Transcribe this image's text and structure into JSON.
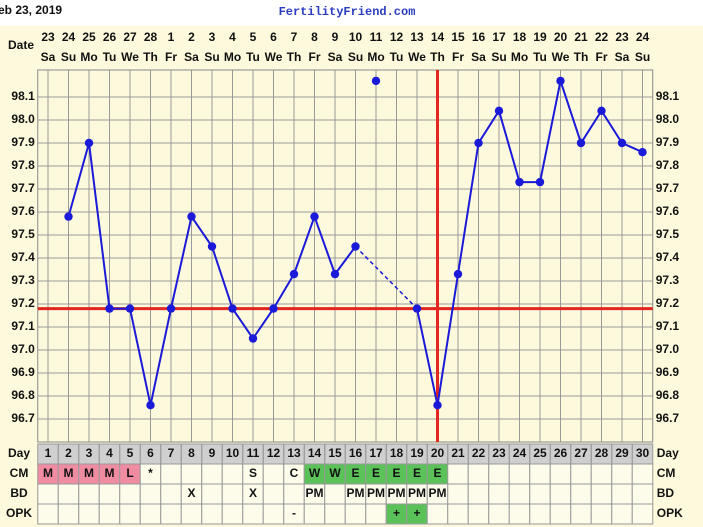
{
  "header": {
    "date": "eb 23, 2019",
    "site": "FertilityFriend.com"
  },
  "chart_data": {
    "type": "line",
    "x_label": "Date",
    "dates": [
      23,
      24,
      25,
      26,
      27,
      28,
      1,
      2,
      3,
      4,
      5,
      6,
      7,
      8,
      9,
      10,
      11,
      12,
      13,
      14,
      15,
      16,
      17,
      18,
      19,
      20,
      21,
      22,
      23,
      24
    ],
    "weekdays": [
      "Sa",
      "Su",
      "Mo",
      "Tu",
      "We",
      "Th",
      "Fr",
      "Sa",
      "Su",
      "Mo",
      "Tu",
      "We",
      "Th",
      "Fr",
      "Sa",
      "Su",
      "Mo",
      "Tu",
      "We",
      "Th",
      "Fr",
      "Sa",
      "Su",
      "Mo",
      "Tu",
      "We",
      "Th",
      "Fr",
      "Sa",
      "Su"
    ],
    "day_label": "Day",
    "categories": [
      1,
      2,
      3,
      4,
      5,
      6,
      7,
      8,
      9,
      10,
      11,
      12,
      13,
      14,
      15,
      16,
      17,
      18,
      19,
      20,
      21,
      22,
      23,
      24,
      25,
      26,
      27,
      28,
      29,
      30
    ],
    "values": [
      null,
      97.58,
      97.9,
      97.18,
      97.18,
      96.76,
      97.18,
      97.58,
      97.45,
      97.18,
      97.05,
      97.18,
      97.33,
      97.58,
      97.33,
      97.45,
      null,
      null,
      97.18,
      96.76,
      97.33,
      97.9,
      98.04,
      97.73,
      97.73,
      98.17,
      97.9,
      98.04,
      97.9,
      97.86
    ],
    "discarded": [
      null,
      null,
      null,
      null,
      null,
      null,
      null,
      null,
      null,
      null,
      null,
      null,
      null,
      null,
      null,
      null,
      98.17,
      null,
      null,
      null,
      null,
      null,
      null,
      null,
      null,
      null,
      null,
      null,
      null,
      null
    ],
    "color": "#1a1ad8",
    "coverline": 97.18,
    "ovulation_day": 20,
    "marker_color": "#e3261f",
    "ylim": [
      96.6,
      98.3
    ],
    "yticks": [
      96.7,
      96.8,
      96.9,
      {
        "value": 97,
        "label": "97.0"
      },
      97.1,
      97.2,
      97.3,
      97.4,
      97.5,
      97.6,
      97.7,
      97.8,
      97.9,
      {
        "value": 98,
        "label": "98.0"
      },
      98.1
    ],
    "grid": true,
    "rows": [
      {
        "label": "CM",
        "cells": [
          "M",
          "M",
          "M",
          "M",
          "L",
          "*",
          null,
          null,
          null,
          null,
          "S",
          null,
          "C",
          "W",
          "W",
          "E",
          "E",
          "E",
          "E",
          "E",
          null,
          null,
          null,
          null,
          null,
          null,
          null,
          null,
          null,
          null
        ]
      },
      {
        "label": "BD",
        "cells": [
          null,
          null,
          null,
          null,
          null,
          null,
          null,
          "X",
          null,
          null,
          "X",
          null,
          null,
          "PM",
          null,
          "PM",
          "PM",
          "PM",
          "PM",
          "PM",
          null,
          null,
          null,
          null,
          null,
          null,
          null,
          null,
          null,
          null
        ]
      },
      {
        "label": "OPK",
        "cells": [
          null,
          null,
          null,
          null,
          null,
          null,
          null,
          null,
          null,
          null,
          null,
          null,
          "-",
          null,
          null,
          null,
          null,
          "+",
          "+",
          null,
          null,
          null,
          null,
          null,
          null,
          null,
          null,
          null,
          null,
          null
        ]
      }
    ],
    "cell_colors": {
      "M": "#f08ca2",
      "L": "#f08ca2",
      "W": "#5bc25a",
      "E": "#5bc25a",
      "+": "#5bc25a"
    }
  }
}
